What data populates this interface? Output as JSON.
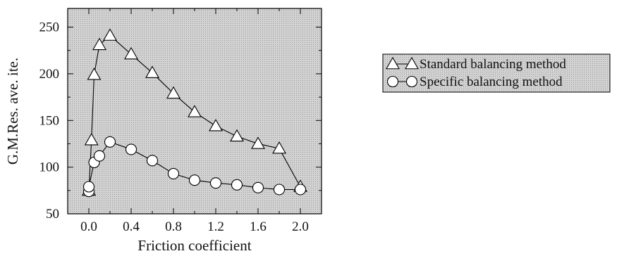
{
  "chart_data": {
    "type": "line",
    "xlabel": "Friction coefficient",
    "ylabel": "G.M.Res. ave. ite.",
    "xlim": [
      -0.2,
      2.2
    ],
    "ylim": [
      50,
      270
    ],
    "x_ticks": [
      0.0,
      0.4,
      0.8,
      1.2,
      1.6,
      2.0
    ],
    "x_tick_labels": [
      "0.0",
      "0.4",
      "0.8",
      "1.2",
      "1.6",
      "2.0"
    ],
    "y_ticks": [
      50,
      100,
      150,
      200,
      250
    ],
    "y_tick_labels": [
      "50",
      "100",
      "150",
      "200",
      "250"
    ],
    "grid": false,
    "plot_background": "#c8c8c8",
    "legend_position": "right, outside plot",
    "series": [
      {
        "name": "Standard balancing method",
        "marker": "triangle",
        "color": "#000000",
        "x": [
          0.0,
          0.0,
          0.025,
          0.05,
          0.1,
          0.2,
          0.4,
          0.6,
          0.8,
          1.0,
          1.2,
          1.4,
          1.6,
          1.8,
          2.0
        ],
        "y": [
          75,
          75,
          129,
          199,
          231,
          241,
          221,
          201,
          179,
          159,
          144,
          133,
          125,
          120,
          79
        ]
      },
      {
        "name": "Specific balancing method",
        "marker": "circle",
        "color": "#000000",
        "x": [
          0.0,
          0.0,
          0.05,
          0.1,
          0.2,
          0.4,
          0.6,
          0.8,
          1.0,
          1.2,
          1.4,
          1.6,
          1.8,
          2.0
        ],
        "y": [
          74,
          79,
          105,
          112,
          127,
          119,
          107,
          93,
          86,
          83,
          81,
          78,
          76,
          76
        ]
      }
    ]
  }
}
